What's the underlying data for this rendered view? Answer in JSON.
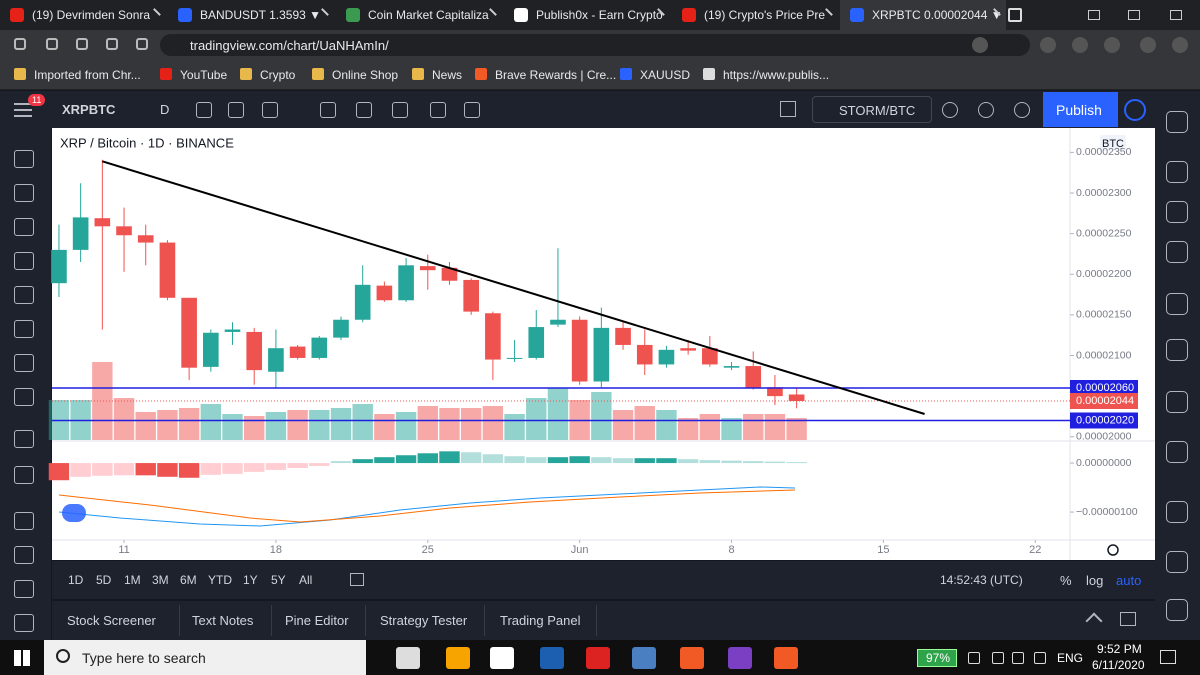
{
  "browser": {
    "tabs": [
      "(19) Devrimden Sonra",
      "BANDUSDT 1.3593 ▼",
      "Coin Market Capitaliza",
      "Publish0x - Earn Crypto",
      "(19) Crypto's Price Pre",
      "XRPBTC 0.00002044 ▼"
    ],
    "url": "tradingview.com/chart/UaNHAmIn/",
    "bookmarks": [
      "Imported from Chr...",
      "YouTube",
      "Crypto",
      "Online Shop",
      "News",
      "Brave Rewards | Cre...",
      "XAUUSD",
      "https://www.publis..."
    ]
  },
  "toolbar": {
    "notifications": "11",
    "symbol": "XRPBTC",
    "interval": "D",
    "compare": "STORM/BTC",
    "publish": "Publish"
  },
  "chart_data": {
    "type": "candlestick",
    "title": "XRP / Bitcoin · 1D · BINANCE",
    "currency": "BTC",
    "open": [
      2.189e-05,
      2.23e-05,
      2.269e-05,
      2.259e-05,
      2.248e-05,
      2.239e-05,
      2.171e-05,
      2.086e-05,
      2.129e-05,
      2.129e-05,
      2.08e-05,
      2.111e-05,
      2.097e-05,
      2.122e-05,
      2.144e-05,
      2.186e-05,
      2.168e-05,
      2.21e-05,
      2.208e-05,
      2.193e-05,
      2.152e-05,
      2.097e-05,
      2.097e-05,
      2.138e-05,
      2.144e-05,
      2.068e-05,
      2.134e-05,
      2.113e-05,
      2.089e-05,
      2.109e-05,
      2.109e-05,
      2.085e-05,
      2.087e-05,
      2.061e-05,
      2.052e-05
    ],
    "high": [
      2.261e-05,
      2.312e-05,
      2.341e-05,
      2.282e-05,
      2.261e-05,
      2.242e-05,
      2.171e-05,
      2.132e-05,
      2.141e-05,
      2.134e-05,
      2.132e-05,
      2.113e-05,
      2.124e-05,
      2.148e-05,
      2.211e-05,
      2.191e-05,
      2.22e-05,
      2.224e-05,
      2.215e-05,
      2.195e-05,
      2.154e-05,
      2.119e-05,
      2.156e-05,
      2.232e-05,
      2.148e-05,
      2.159e-05,
      2.141e-05,
      2.132e-05,
      2.112e-05,
      2.119e-05,
      2.124e-05,
      2.092e-05,
      2.105e-05,
      2.076e-05,
      2.06e-05
    ],
    "low": [
      2.172e-05,
      2.215e-05,
      2.132e-05,
      2.203e-05,
      2.211e-05,
      2.168e-05,
      2.07e-05,
      2.08e-05,
      2.113e-05,
      2.064e-05,
      2.06e-05,
      2.095e-05,
      2.095e-05,
      2.119e-05,
      2.141e-05,
      2.166e-05,
      2.166e-05,
      2.181e-05,
      2.187e-05,
      2.15e-05,
      2.07e-05,
      2.092e-05,
      2.095e-05,
      2.135e-05,
      2.064e-05,
      2.061e-05,
      2.107e-05,
      2.076e-05,
      2.085e-05,
      2.101e-05,
      2.086e-05,
      2.082e-05,
      2.058e-05,
      2.039e-05,
      2.035e-05
    ],
    "close": [
      2.23e-05,
      2.27e-05,
      2.259e-05,
      2.248e-05,
      2.239e-05,
      2.171e-05,
      2.085e-05,
      2.128e-05,
      2.132e-05,
      2.082e-05,
      2.109e-05,
      2.097e-05,
      2.122e-05,
      2.144e-05,
      2.187e-05,
      2.168e-05,
      2.211e-05,
      2.205e-05,
      2.192e-05,
      2.154e-05,
      2.095e-05,
      2.097e-05,
      2.135e-05,
      2.144e-05,
      2.068e-05,
      2.134e-05,
      2.113e-05,
      2.089e-05,
      2.107e-05,
      2.106e-05,
      2.089e-05,
      2.087e-05,
      2.06e-05,
      2.05e-05,
      2.044e-05
    ],
    "volume": [
      40,
      40,
      78,
      42,
      28,
      30,
      32,
      36,
      26,
      24,
      28,
      30,
      30,
      32,
      36,
      26,
      28,
      34,
      32,
      32,
      34,
      26,
      42,
      52,
      40,
      48,
      30,
      34,
      30,
      22,
      26,
      22,
      26,
      26,
      22
    ],
    "xlim": [
      -0.32,
      46.6
    ],
    "xticks": [
      {
        "value": 3,
        "label": "11"
      },
      {
        "value": 10,
        "label": "18"
      },
      {
        "value": 17,
        "label": "25"
      },
      {
        "value": 24,
        "label": "Jun"
      },
      {
        "value": 31,
        "label": "8"
      },
      {
        "value": 38,
        "label": "15"
      },
      {
        "value": 45,
        "label": "22"
      }
    ],
    "ylim": [
      1.996e-05,
      2.38e-05
    ],
    "yticks": [
      {
        "value": 2e-05,
        "label": "0.00002000"
      },
      {
        "value": 2.1e-05,
        "label": "0.00002100"
      },
      {
        "value": 2.15e-05,
        "label": "0.00002150"
      },
      {
        "value": 2.2e-05,
        "label": "0.00002200"
      },
      {
        "value": 2.25e-05,
        "label": "0.00002250"
      },
      {
        "value": 2.3e-05,
        "label": "0.00002300"
      },
      {
        "value": 2.35e-05,
        "label": "0.00002350"
      }
    ],
    "grid": false,
    "up_color": "#26a69a",
    "down_color": "#ef5350",
    "trend_line": {
      "x": [
        2,
        39.9
      ],
      "values": [
        2.339e-05,
        2.028e-05
      ],
      "color": "#000000"
    },
    "price_lines": [
      {
        "value": 2.06e-05,
        "label": "0.00002060"
      },
      {
        "value": 2.02e-05,
        "label": "0.00002020"
      }
    ],
    "price_line_color": "#1f1fe0",
    "last_price": {
      "value": 2.044e-05,
      "label": "0.00002044"
    },
    "macd": {
      "ylim": [
        -1.57e-06,
        4.3e-07
      ],
      "yticks": [
        {
          "value": 0,
          "label": "0.00000000"
        },
        {
          "value": -1e-06,
          "label": "−0.00000100"
        }
      ],
      "histogram": [
        -3.5e-07,
        -2.8e-07,
        -2.6e-07,
        -2.5e-07,
        -2.5e-07,
        -2.8e-07,
        -3e-07,
        -2.4e-07,
        -2.2e-07,
        -1.8e-07,
        -1.4e-07,
        -1e-07,
        -6e-08,
        4e-08,
        8e-08,
        1.2e-07,
        1.6e-07,
        2e-07,
        2.4e-07,
        2.2e-07,
        1.8e-07,
        1.4e-07,
        1.2e-07,
        1.2e-07,
        1.4e-07,
        1.2e-07,
        1e-07,
        1e-07,
        1e-07,
        8e-08,
        6e-08,
        5e-08,
        4e-08,
        3e-08,
        2e-08
      ]
    }
  },
  "bottom": {
    "ranges": [
      "1D",
      "5D",
      "1M",
      "3M",
      "6M",
      "YTD",
      "1Y",
      "5Y",
      "All"
    ],
    "clock": "14:52:43 (UTC)",
    "percent": "%",
    "log": "log",
    "auto": "auto",
    "panels": [
      "Stock Screener",
      "Text Notes",
      "Pine Editor",
      "Strategy Tester",
      "Trading Panel"
    ]
  },
  "taskbar": {
    "search": "Type here to search",
    "battery": "97%",
    "language": "ENG",
    "time": "9:52 PM",
    "date": "6/11/2020"
  }
}
